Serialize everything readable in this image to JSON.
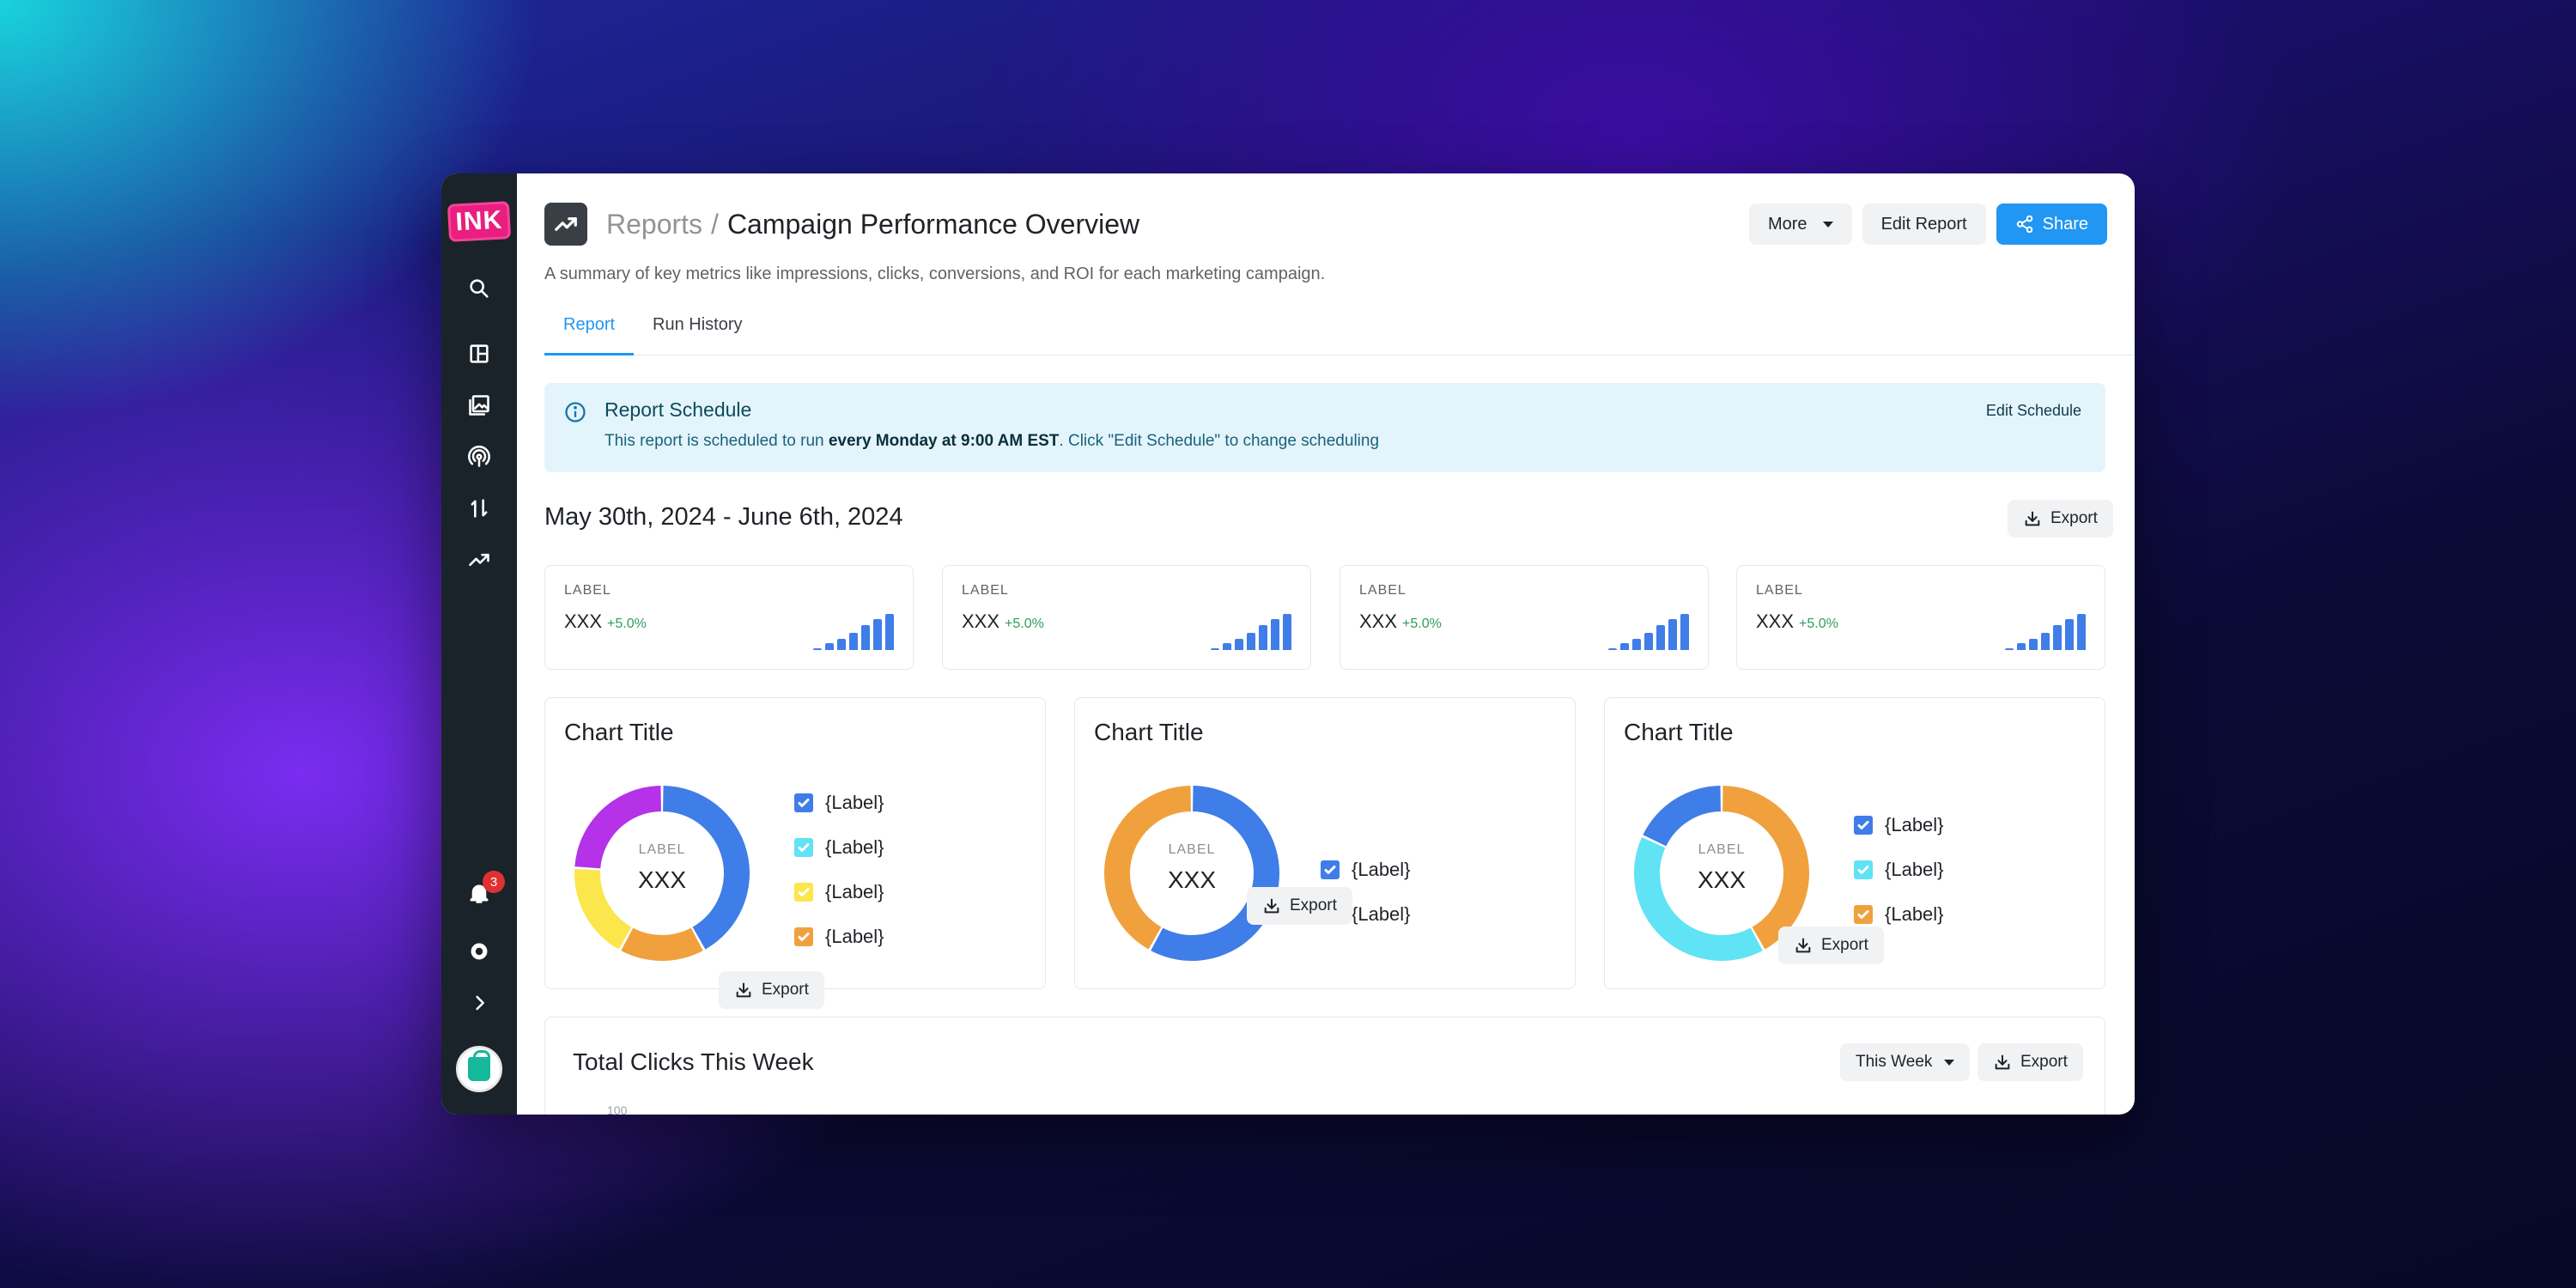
{
  "app": {
    "logo_text": "INK",
    "brand_color": "#e91e7e",
    "accent": "#2196f3"
  },
  "sidebar": {
    "icons": [
      "search-icon",
      "layout-icon",
      "images-icon",
      "broadcast-icon",
      "transfer-icon",
      "trend-icon"
    ],
    "notifications_count": "3"
  },
  "header": {
    "breadcrumb_parent": "Reports",
    "breadcrumb_separator": "/",
    "title": "Campaign Performance Overview",
    "more_label": "More",
    "edit_label": "Edit Report",
    "share_label": "Share"
  },
  "subtitle": "A summary of key metrics like impressions, clicks, conversions, and ROI for each marketing campaign.",
  "tabs": [
    {
      "label": "Report",
      "active": true
    },
    {
      "label": "Run History",
      "active": false
    }
  ],
  "banner": {
    "title": "Report Schedule",
    "text_before": "This report is scheduled to run ",
    "text_bold": "every Monday at 9:00 AM EST",
    "text_after": ". Click \"Edit Schedule\" to change scheduling",
    "link_label": "Edit Schedule"
  },
  "date_range": "May 30th, 2024 - June 6th, 2024",
  "export_label": "Export",
  "stats": [
    {
      "label": "LABEL",
      "value": "XXX",
      "change": "+5.0%",
      "spark": [
        0.05,
        0.18,
        0.3,
        0.48,
        0.7,
        0.85,
        1.0
      ]
    },
    {
      "label": "LABEL",
      "value": "XXX",
      "change": "+5.0%",
      "spark": [
        0.05,
        0.18,
        0.3,
        0.48,
        0.7,
        0.85,
        1.0
      ]
    },
    {
      "label": "LABEL",
      "value": "XXX",
      "change": "+5.0%",
      "spark": [
        0.05,
        0.18,
        0.3,
        0.48,
        0.7,
        0.85,
        1.0
      ]
    },
    {
      "label": "LABEL",
      "value": "XXX",
      "change": "+5.0%",
      "spark": [
        0.05,
        0.18,
        0.3,
        0.48,
        0.7,
        0.85,
        1.0
      ]
    }
  ],
  "chart_data": [
    {
      "type": "pie",
      "title": "Chart Title",
      "center_label": "LABEL",
      "center_value": "XXX",
      "legend": [
        "{Label}",
        "{Label}",
        "{Label}",
        "{Label}"
      ],
      "values": [
        42,
        16,
        18,
        24
      ],
      "colors": [
        "#3f7de8",
        "#f0a13e",
        "#fbe64b",
        "#b532e8"
      ]
    },
    {
      "type": "pie",
      "title": "Chart Title",
      "center_label": "LABEL",
      "center_value": "XXX",
      "legend": [
        "{Label}",
        "{Label}"
      ],
      "values": [
        58,
        42
      ],
      "colors": [
        "#3f7de8",
        "#f0a13e"
      ]
    },
    {
      "type": "pie",
      "title": "Chart Title",
      "center_label": "LABEL",
      "center_value": "XXX",
      "legend": [
        "{Label}",
        "{Label}",
        "{Label}"
      ],
      "values": [
        42,
        40,
        18
      ],
      "colors": [
        "#f0a13e",
        "#5fe3f5",
        "#3f7de8"
      ]
    }
  ],
  "legend_colors": [
    [
      "#3f7de8",
      "#5fe3f5",
      "#fbe64b",
      "#f0a13e"
    ],
    [
      "#3f7de8",
      "#5fe3f5"
    ],
    [
      "#3f7de8",
      "#5fe3f5",
      "#f0a13e"
    ]
  ],
  "total_clicks": {
    "title": "Total Clicks This Week",
    "period_label": "This Week",
    "y_tick_top": "100"
  }
}
